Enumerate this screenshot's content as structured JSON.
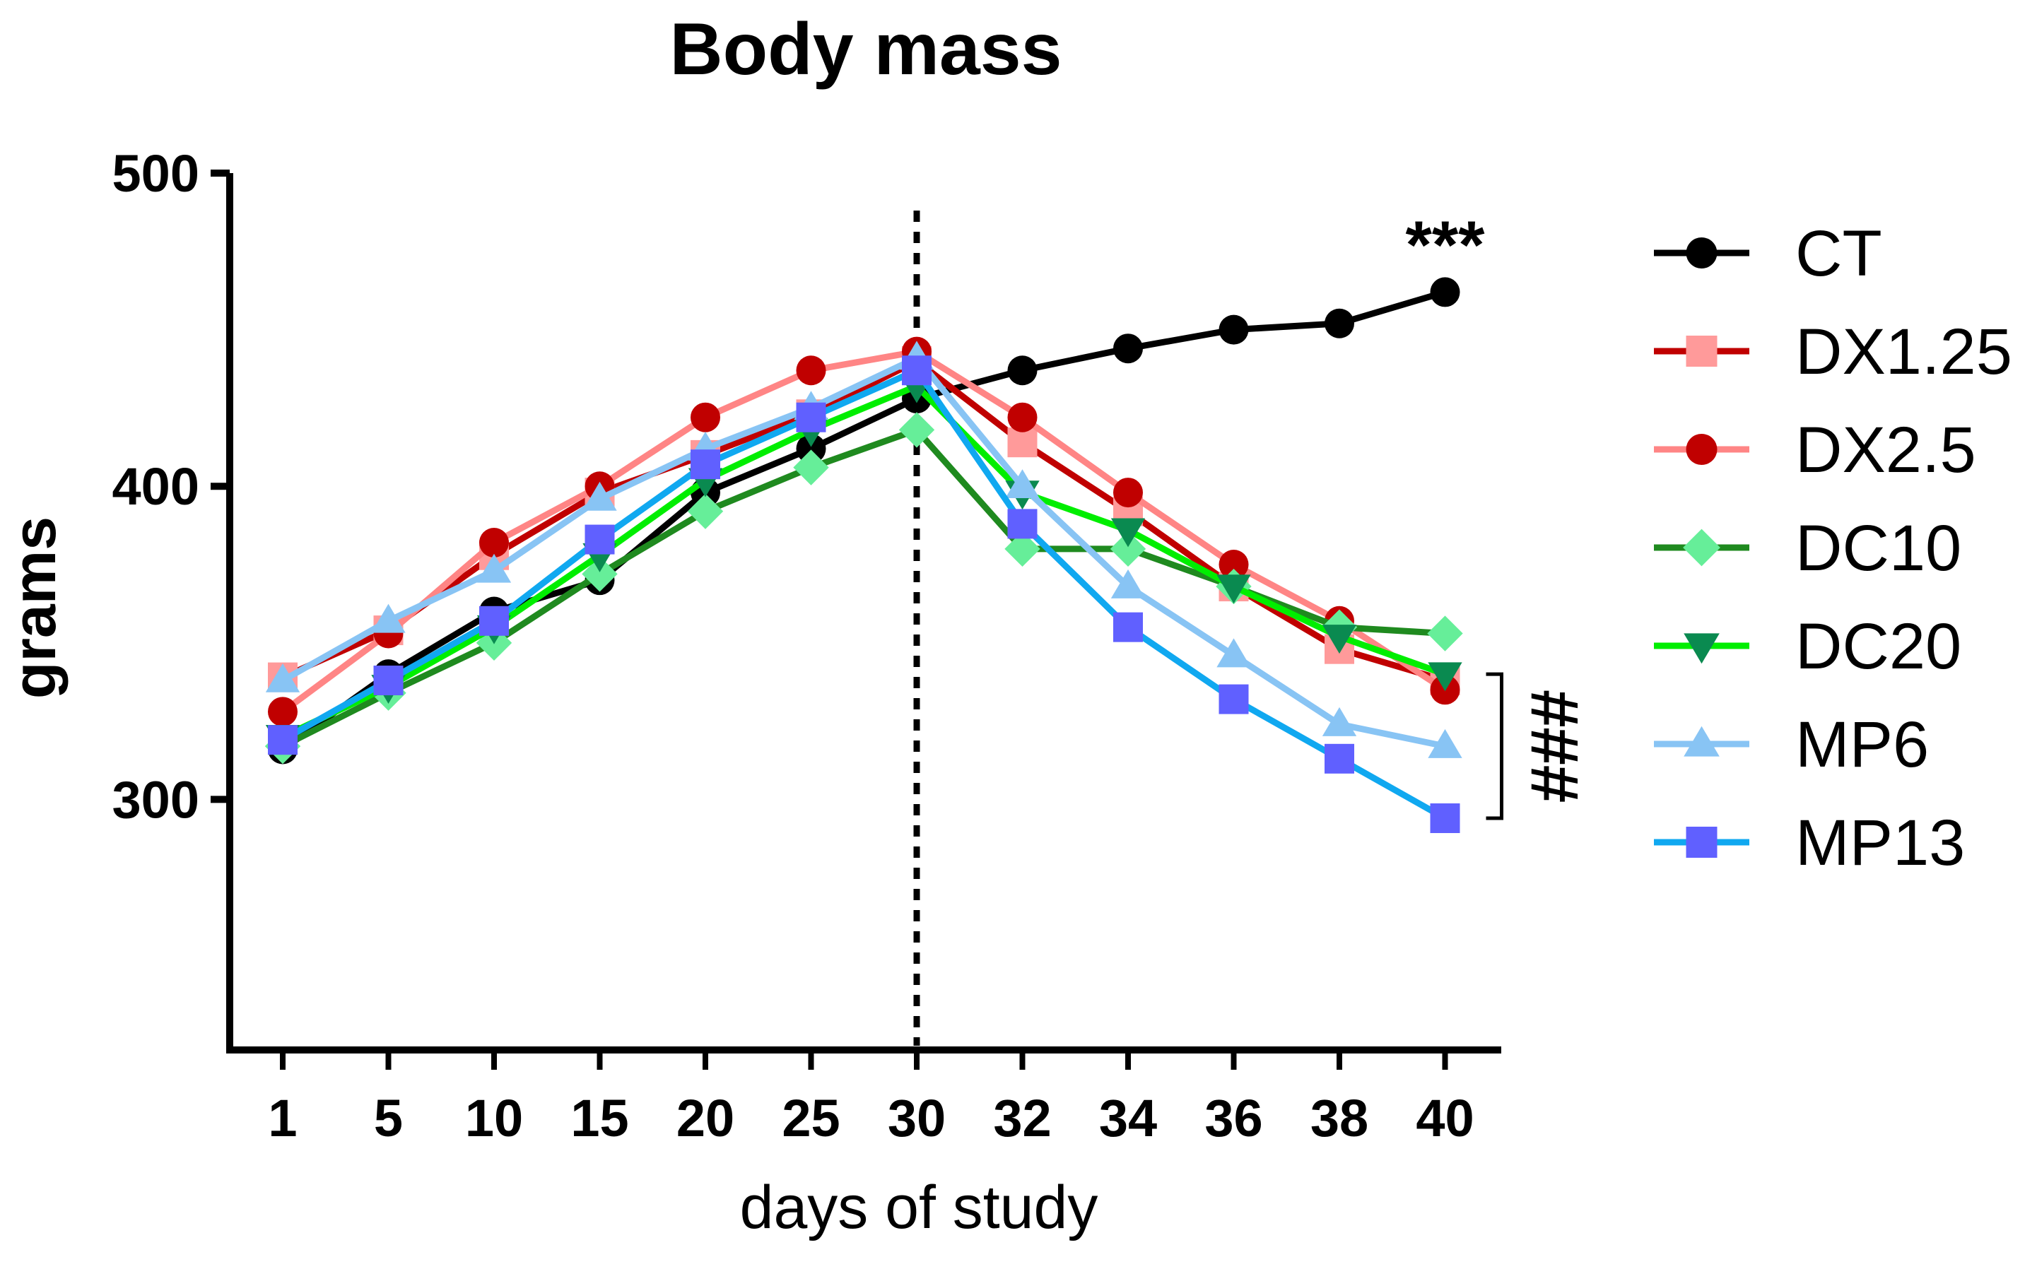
{
  "chart_data": {
    "type": "line",
    "title": "Body mass",
    "xlabel": "days of study",
    "ylabel": "grams",
    "categories": [
      "1",
      "5",
      "10",
      "15",
      "20",
      "25",
      "30",
      "32",
      "34",
      "36",
      "38",
      "40"
    ],
    "ylim": [
      220,
      500
    ],
    "yticks": [
      300,
      400,
      500
    ],
    "grid": false,
    "legend_position": "right",
    "reference_line": {
      "category": "30",
      "style": "dotted"
    },
    "series": [
      {
        "name": "CT",
        "marker": "circle",
        "line_color": "#000000",
        "marker_color": "#000000",
        "values": [
          316,
          340,
          360,
          370,
          398,
          412,
          428,
          437,
          444,
          450,
          452,
          462
        ]
      },
      {
        "name": "DX1.25",
        "marker": "square",
        "line_color": "#c00000",
        "marker_color": "#ff9a9a",
        "values": [
          339,
          354,
          378,
          398,
          410,
          423,
          440,
          414,
          392,
          368,
          348,
          338
        ]
      },
      {
        "name": "DX2.5",
        "marker": "circle",
        "line_color": "#ff8585",
        "marker_color": "#c00000",
        "values": [
          328,
          353,
          382,
          400,
          422,
          437,
          443,
          422,
          398,
          375,
          357,
          335
        ]
      },
      {
        "name": "DC10",
        "marker": "diamond",
        "line_color": "#1f8a1f",
        "marker_color": "#66ee99",
        "values": [
          317,
          334,
          350,
          372,
          392,
          406,
          418,
          380,
          380,
          368,
          355,
          353
        ]
      },
      {
        "name": "DC20",
        "marker": "triangle-down",
        "line_color": "#00ee00",
        "marker_color": "#0a8a50",
        "values": [
          320,
          336,
          355,
          378,
          402,
          418,
          432,
          398,
          386,
          368,
          352,
          340
        ]
      },
      {
        "name": "MP6",
        "marker": "triangle-up",
        "line_color": "#88c4f4",
        "marker_color": "#88c4f4",
        "values": [
          338,
          357,
          373,
          396,
          412,
          425,
          441,
          400,
          368,
          346,
          324,
          317
        ]
      },
      {
        "name": "MP13",
        "marker": "square",
        "line_color": "#10a8f0",
        "marker_color": "#6060ff",
        "values": [
          319,
          338,
          357,
          383,
          407,
          422,
          437,
          388,
          355,
          332,
          313,
          294
        ]
      }
    ],
    "annotations": [
      {
        "text": "***",
        "category": "40",
        "series": "CT",
        "placement": "above"
      },
      {
        "text": "###",
        "category": "40",
        "bracket_from": 340,
        "bracket_to": 294,
        "placement": "right"
      }
    ]
  }
}
